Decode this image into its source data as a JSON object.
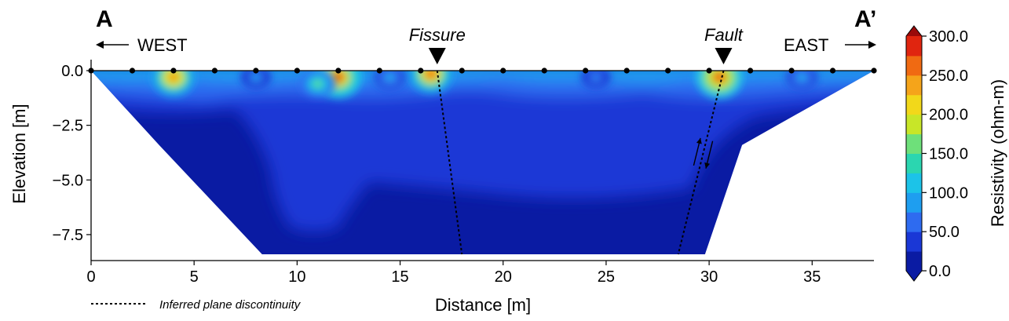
{
  "chart_data": {
    "type": "heatmap",
    "title": "",
    "xlabel": "Distance [m]",
    "ylabel": "Elevation [m]",
    "xlim": [
      0,
      38
    ],
    "ylim": [
      -8.6,
      0.2
    ],
    "xticks": [
      0,
      5,
      10,
      15,
      20,
      25,
      30,
      35
    ],
    "yticks": [
      0.0,
      -2.5,
      -5.0,
      -7.5
    ],
    "xtick_labels": [
      "0",
      "5",
      "10",
      "15",
      "20",
      "25",
      "30",
      "35"
    ],
    "ytick_labels": [
      "0.0",
      "−2.5",
      "−5.0",
      "−7.5"
    ],
    "grid": false,
    "section_endpoints": {
      "start": "A",
      "end": "A’"
    },
    "directions": {
      "west": "WEST",
      "east": "EAST"
    },
    "electrodes_x": [
      0,
      2,
      4,
      6,
      8,
      10,
      12,
      14,
      16,
      18,
      20,
      22,
      24,
      26,
      28,
      30,
      32,
      34,
      36,
      38
    ],
    "domain_polygon": [
      [
        0,
        0
      ],
      [
        38,
        0
      ],
      [
        31.6,
        -3.4
      ],
      [
        29.8,
        -8.4
      ],
      [
        8.3,
        -8.4
      ],
      [
        3.3,
        -3.4
      ]
    ],
    "colorbar": {
      "label": "Resistivity (ohm-m)",
      "min": 0.0,
      "max": 300.0,
      "ticks": [
        0.0,
        50.0,
        100.0,
        150.0,
        200.0,
        250.0,
        300.0
      ],
      "tick_labels": [
        "0.0",
        "50.0",
        "100.0",
        "150.0",
        "200.0",
        "250.0",
        "300.0"
      ],
      "level_step": 25,
      "colormap": "jet",
      "colors": [
        "#0A1BA3",
        "#1A37D6",
        "#2E6BF0",
        "#1E9EF0",
        "#1CC3E8",
        "#2BD6B0",
        "#6EE07A",
        "#C8E628",
        "#F2D81A",
        "#F5A41A",
        "#F06A12",
        "#E0250F",
        "#9A0A0A"
      ]
    },
    "anomalies": [
      {
        "x": 4.0,
        "z": -0.3,
        "value": 265
      },
      {
        "x": 12.0,
        "z": -0.3,
        "value": 290
      },
      {
        "x": 16.5,
        "z": -0.15,
        "value": 270
      },
      {
        "x": 30.5,
        "z": -0.3,
        "value": 295
      },
      {
        "x": 11.0,
        "z": -0.6,
        "value": 150
      },
      {
        "x": 14.5,
        "z": -0.3,
        "value": 105
      },
      {
        "x": 8.0,
        "z": -0.3,
        "value": 95
      },
      {
        "x": 24.5,
        "z": -0.3,
        "value": 85
      },
      {
        "x": 34.5,
        "z": -0.3,
        "value": 105
      }
    ],
    "annotations": [
      {
        "label": "Fissure",
        "marker_x": 16.8,
        "line": [
          [
            16.8,
            0.0
          ],
          [
            18.0,
            -8.4
          ]
        ]
      },
      {
        "label": "Fault",
        "marker_x": 30.7,
        "line": [
          [
            30.7,
            0.0
          ],
          [
            28.5,
            -8.4
          ]
        ]
      }
    ],
    "legend": {
      "label": "Inferred plane discontinuity",
      "position": "bottom-left"
    }
  }
}
